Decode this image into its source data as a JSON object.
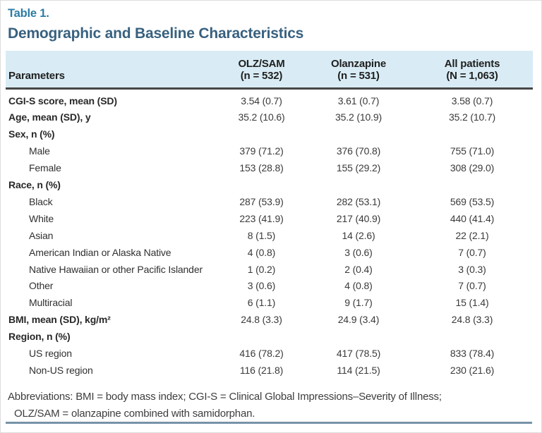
{
  "page": {
    "table_number": "Table 1.",
    "title": "Demographic and Baseline Characteristics"
  },
  "table": {
    "columns": [
      {
        "label": "Parameters"
      },
      {
        "line1": "OLZ/SAM",
        "line2": "(n = 532)"
      },
      {
        "line1": "Olanzapine",
        "line2": "(n = 531)"
      },
      {
        "line1": "All patients",
        "line2": "(N = 1,063)"
      }
    ],
    "rows": [
      {
        "label": "CGI-S score, mean (SD)",
        "bold": true,
        "indent": false,
        "values": [
          "3.54 (0.7)",
          "3.61 (0.7)",
          "3.58 (0.7)"
        ]
      },
      {
        "label": "Age, mean (SD), y",
        "bold": true,
        "indent": false,
        "values": [
          "35.2 (10.6)",
          "35.2 (10.9)",
          "35.2 (10.7)"
        ]
      },
      {
        "label": "Sex, n (%)",
        "bold": true,
        "indent": false,
        "values": [
          "",
          "",
          ""
        ]
      },
      {
        "label": "Male",
        "bold": false,
        "indent": true,
        "values": [
          "379 (71.2)",
          "376 (70.8)",
          "755 (71.0)"
        ]
      },
      {
        "label": "Female",
        "bold": false,
        "indent": true,
        "values": [
          "153 (28.8)",
          "155 (29.2)",
          "308 (29.0)"
        ]
      },
      {
        "label": "Race, n (%)",
        "bold": true,
        "indent": false,
        "values": [
          "",
          "",
          ""
        ]
      },
      {
        "label": "Black",
        "bold": false,
        "indent": true,
        "values": [
          "287 (53.9)",
          "282 (53.1)",
          "569 (53.5)"
        ]
      },
      {
        "label": "White",
        "bold": false,
        "indent": true,
        "values": [
          "223 (41.9)",
          "217 (40.9)",
          "440 (41.4)"
        ]
      },
      {
        "label": "Asian",
        "bold": false,
        "indent": true,
        "values": [
          "8 (1.5)",
          "14 (2.6)",
          "22 (2.1)"
        ]
      },
      {
        "label": "American Indian or Alaska Native",
        "bold": false,
        "indent": true,
        "values": [
          "4 (0.8)",
          "3 (0.6)",
          "7 (0.7)"
        ]
      },
      {
        "label": "Native Hawaiian or other Pacific Islander",
        "bold": false,
        "indent": true,
        "values": [
          "1 (0.2)",
          "2 (0.4)",
          "3 (0.3)"
        ]
      },
      {
        "label": "Other",
        "bold": false,
        "indent": true,
        "values": [
          "3 (0.6)",
          "4 (0.8)",
          "7 (0.7)"
        ]
      },
      {
        "label": "Multiracial",
        "bold": false,
        "indent": true,
        "values": [
          "6 (1.1)",
          "9 (1.7)",
          "15 (1.4)"
        ]
      },
      {
        "label": "BMI, mean (SD), kg/m²",
        "bold": true,
        "indent": false,
        "values": [
          "24.8 (3.3)",
          "24.9 (3.4)",
          "24.8 (3.3)"
        ]
      },
      {
        "label": "Region, n (%)",
        "bold": true,
        "indent": false,
        "values": [
          "",
          "",
          ""
        ]
      },
      {
        "label": "US region",
        "bold": false,
        "indent": true,
        "values": [
          "416 (78.2)",
          "417 (78.5)",
          "833 (78.4)"
        ]
      },
      {
        "label": "Non-US region",
        "bold": false,
        "indent": true,
        "values": [
          "116 (21.8)",
          "114 (21.5)",
          "230 (21.6)"
        ]
      }
    ]
  },
  "footnote": {
    "line1": "Abbreviations: BMI = body mass index; CGI-S = Clinical Global Impressions–Severity of Illness;",
    "line2": "OLZ/SAM = olanzapine combined with samidorphan."
  },
  "colors": {
    "table_number": "#2d7ca4",
    "title": "#38617f",
    "header_bg": "#d9ecf5",
    "header_rule": "#474747",
    "bottom_rule": "#7693a7"
  }
}
